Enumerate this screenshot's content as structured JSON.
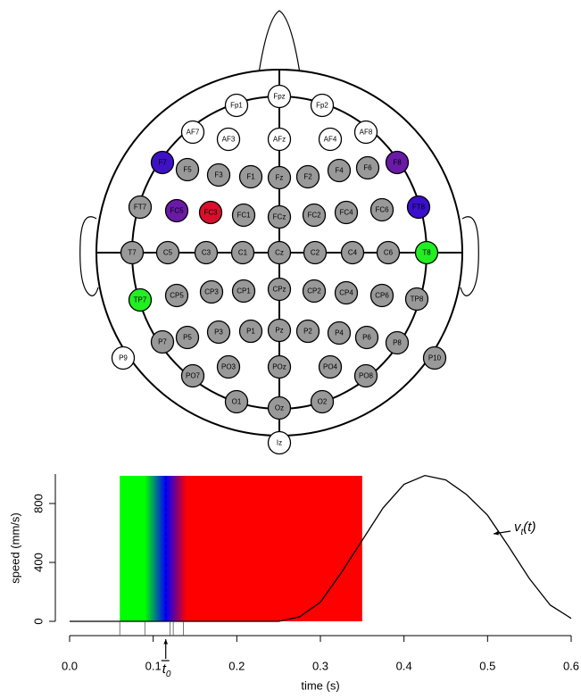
{
  "electrodes": [
    {
      "label": "Fpz",
      "color": "#ffffff"
    },
    {
      "label": "Fp1",
      "color": "#ffffff"
    },
    {
      "label": "Fp2",
      "color": "#ffffff"
    },
    {
      "label": "AF7",
      "color": "#ffffff"
    },
    {
      "label": "AF3",
      "color": "#ffffff"
    },
    {
      "label": "AFz",
      "color": "#ffffff"
    },
    {
      "label": "AF4",
      "color": "#ffffff"
    },
    {
      "label": "AF8",
      "color": "#ffffff"
    },
    {
      "label": "F7",
      "color": "#3d12c4"
    },
    {
      "label": "F5",
      "color": "#999999"
    },
    {
      "label": "F3",
      "color": "#999999"
    },
    {
      "label": "F1",
      "color": "#999999"
    },
    {
      "label": "Fz",
      "color": "#999999"
    },
    {
      "label": "F2",
      "color": "#999999"
    },
    {
      "label": "F4",
      "color": "#999999"
    },
    {
      "label": "F6",
      "color": "#999999"
    },
    {
      "label": "F8",
      "color": "#6a1aa6"
    },
    {
      "label": "FT7",
      "color": "#999999"
    },
    {
      "label": "FC5",
      "color": "#6a1aa6"
    },
    {
      "label": "FC3",
      "color": "#d8102c"
    },
    {
      "label": "FC1",
      "color": "#999999"
    },
    {
      "label": "FCz",
      "color": "#999999"
    },
    {
      "label": "FC2",
      "color": "#999999"
    },
    {
      "label": "FC4",
      "color": "#999999"
    },
    {
      "label": "FC6",
      "color": "#999999"
    },
    {
      "label": "FT8",
      "color": "#3a10cc"
    },
    {
      "label": "T7",
      "color": "#999999"
    },
    {
      "label": "C5",
      "color": "#999999"
    },
    {
      "label": "C3",
      "color": "#999999"
    },
    {
      "label": "C1",
      "color": "#999999"
    },
    {
      "label": "Cz",
      "color": "#999999"
    },
    {
      "label": "C2",
      "color": "#999999"
    },
    {
      "label": "C4",
      "color": "#999999"
    },
    {
      "label": "C6",
      "color": "#999999"
    },
    {
      "label": "T8",
      "color": "#22ee22"
    },
    {
      "label": "TP7",
      "color": "#22ee22"
    },
    {
      "label": "CP5",
      "color": "#999999"
    },
    {
      "label": "CP3",
      "color": "#999999"
    },
    {
      "label": "CP1",
      "color": "#999999"
    },
    {
      "label": "CPz",
      "color": "#999999"
    },
    {
      "label": "CP2",
      "color": "#999999"
    },
    {
      "label": "CP4",
      "color": "#999999"
    },
    {
      "label": "CP6",
      "color": "#999999"
    },
    {
      "label": "TP8",
      "color": "#999999"
    },
    {
      "label": "P7",
      "color": "#999999"
    },
    {
      "label": "P5",
      "color": "#999999"
    },
    {
      "label": "P3",
      "color": "#999999"
    },
    {
      "label": "P1",
      "color": "#999999"
    },
    {
      "label": "Pz",
      "color": "#999999"
    },
    {
      "label": "P2",
      "color": "#999999"
    },
    {
      "label": "P4",
      "color": "#999999"
    },
    {
      "label": "P6",
      "color": "#999999"
    },
    {
      "label": "P8",
      "color": "#999999"
    },
    {
      "label": "P9",
      "color": "#ffffff"
    },
    {
      "label": "P10",
      "color": "#999999"
    },
    {
      "label": "PO7",
      "color": "#999999"
    },
    {
      "label": "PO3",
      "color": "#999999"
    },
    {
      "label": "POz",
      "color": "#999999"
    },
    {
      "label": "PO4",
      "color": "#999999"
    },
    {
      "label": "PO8",
      "color": "#999999"
    },
    {
      "label": "O1",
      "color": "#999999"
    },
    {
      "label": "Oz",
      "color": "#999999"
    },
    {
      "label": "O2",
      "color": "#999999"
    },
    {
      "label": "Iz",
      "color": "#ffffff"
    }
  ],
  "chart_data": {
    "type": "line",
    "x_label": "time (s)",
    "y_label": "speed (mm/s)",
    "x": [
      0,
      0.2,
      0.25,
      0.275,
      0.3,
      0.325,
      0.35,
      0.375,
      0.4,
      0.425,
      0.45,
      0.475,
      0.5,
      0.525,
      0.55,
      0.575,
      0.6
    ],
    "values": [
      0,
      0,
      0,
      30,
      130,
      330,
      550,
      770,
      930,
      990,
      960,
      860,
      720,
      510,
      290,
      110,
      20
    ],
    "color": "#000000",
    "xlim": [
      0,
      0.6
    ],
    "ylim": [
      0,
      1000
    ],
    "xticks": [
      {
        "value": 0,
        "label": "0.0"
      },
      0.1,
      0.2,
      0.3,
      0.4,
      0.5,
      0.6
    ],
    "yticks": [
      0,
      400,
      800
    ],
    "band": {
      "start": 0.06,
      "end": 0.35,
      "stops": [
        0.09,
        0.115,
        0.14
      ],
      "stop_colors": [
        "#00ff00",
        "#0000ff",
        "#ff0000"
      ]
    },
    "t0": 0.115,
    "t0_color": "#0000cc",
    "rug": [
      0.06,
      0.09,
      0.12,
      0.124,
      0.136
    ],
    "curve_label": {
      "text": "v",
      "sub": "t",
      "suffix": "(t)"
    },
    "t0_label": {
      "text": "t",
      "sub": "0"
    }
  }
}
